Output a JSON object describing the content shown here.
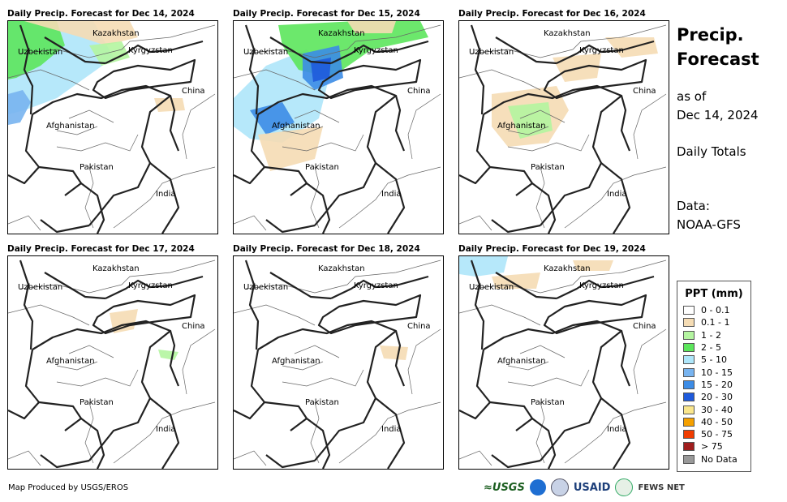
{
  "panels": [
    {
      "title": "Daily Precip. Forecast for Dec 14, 2024"
    },
    {
      "title": "Daily Precip. Forecast for Dec 15, 2024"
    },
    {
      "title": "Daily Precip. Forecast for Dec 16, 2024"
    },
    {
      "title": "Daily Precip. Forecast for Dec 17, 2024"
    },
    {
      "title": "Daily Precip. Forecast for Dec 18, 2024"
    },
    {
      "title": "Daily Precip. Forecast for Dec 19, 2024"
    }
  ],
  "map_labels": {
    "kazakhstan": "Kazakhstan",
    "uzbekistan": "Uzbekistan",
    "kyrgyzstan": "Kyrgyzstan",
    "china": "China",
    "afghanistan": "Afghanistan",
    "pakistan": "Pakistan",
    "india": "India"
  },
  "side": {
    "title_line1": "Precip.",
    "title_line2": "Forecast",
    "asof_line1": "as of",
    "asof_line2": "Dec 14, 2024",
    "daily": "Daily Totals",
    "data_line1": "Data:",
    "data_line2": "NOAA-GFS"
  },
  "legend": {
    "title": "PPT (mm)",
    "items": [
      {
        "label": "0 - 0.1",
        "color": "#ffffff"
      },
      {
        "label": "0.1 - 1",
        "color": "#f5dcb4"
      },
      {
        "label": "1 - 2",
        "color": "#b4f5a0"
      },
      {
        "label": "2 - 5",
        "color": "#5ce65c"
      },
      {
        "label": "5 - 10",
        "color": "#aee6fa"
      },
      {
        "label": "10 - 15",
        "color": "#78b4f0"
      },
      {
        "label": "15 - 20",
        "color": "#3c8ce6"
      },
      {
        "label": "20 - 30",
        "color": "#1e5adc"
      },
      {
        "label": "30 - 40",
        "color": "#fae68c"
      },
      {
        "label": "40 - 50",
        "color": "#f5a000"
      },
      {
        "label": "50 - 75",
        "color": "#f03c00"
      },
      {
        "label": "> 75",
        "color": "#a01e1e"
      },
      {
        "label": "No Data",
        "color": "#999999"
      }
    ]
  },
  "footer": "Map Produced by USGS/EROS",
  "logos": {
    "usgs": "≈USGS",
    "usaid": "USAID",
    "fews": "FEWS NET"
  }
}
